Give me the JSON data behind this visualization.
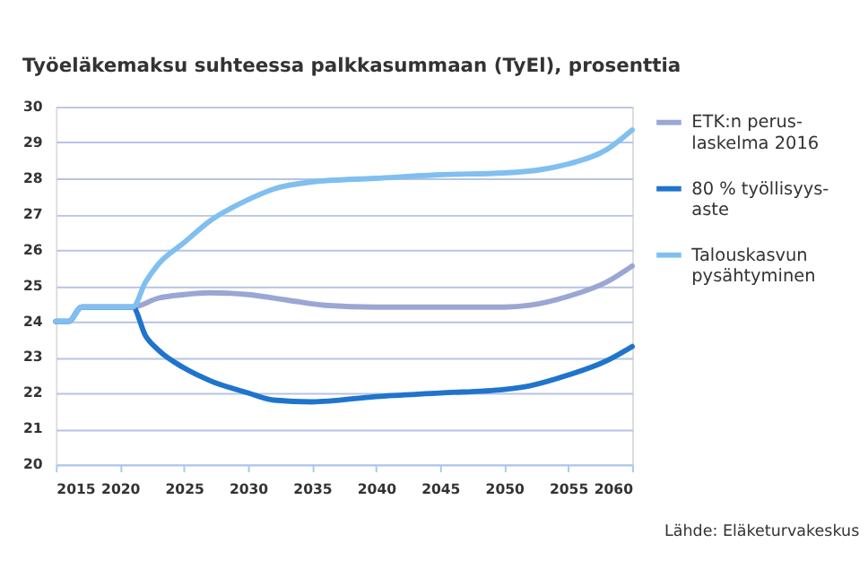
{
  "chart_data": {
    "type": "line",
    "title": "Työeläkemaksu suhteessa palkkasummaan (TyEl), prosenttia",
    "annotations": [
      "Lähde: Eläketurvakeskus"
    ],
    "xlim": [
      2015,
      2060
    ],
    "xticks": [
      2015,
      2020,
      2025,
      2030,
      2035,
      2040,
      2045,
      2050,
      2055,
      2060
    ],
    "ylim": [
      20,
      30
    ],
    "yticks": [
      20,
      21,
      22,
      23,
      24,
      25,
      26,
      27,
      28,
      29,
      30
    ],
    "grid": "y",
    "legend": "right",
    "marker": "none",
    "line_style": "solid",
    "series": [
      {
        "name": "ETK:n perus-\nlaskelma 2016",
        "color": "#9aa6d4",
        "x": [
          2015,
          2016,
          2017,
          2021,
          2023,
          2025,
          2027,
          2030,
          2033,
          2036,
          2040,
          2045,
          2050,
          2052,
          2055,
          2058,
          2060
        ],
        "values": [
          24,
          24,
          24.4,
          24.4,
          24.65,
          24.75,
          24.8,
          24.75,
          24.6,
          24.45,
          24.4,
          24.4,
          24.4,
          24.45,
          24.7,
          25.1,
          25.55
        ]
      },
      {
        "name": "80 % työllisyys-\naste",
        "color": "#1f74cc",
        "x": [
          2015,
          2016,
          2017,
          2021,
          2022,
          2023,
          2025,
          2027,
          2030,
          2032,
          2035,
          2040,
          2045,
          2050,
          2052,
          2055,
          2058,
          2060
        ],
        "values": [
          24,
          24,
          24.4,
          24.4,
          23.6,
          23.2,
          22.7,
          22.35,
          22.0,
          21.8,
          21.75,
          21.9,
          22.0,
          22.1,
          22.2,
          22.5,
          22.9,
          23.3
        ]
      },
      {
        "name": "Talouskasvun\npysähtyminen",
        "color": "#80bff0",
        "x": [
          2015,
          2016,
          2017,
          2021,
          2022,
          2023,
          2025,
          2027,
          2030,
          2032,
          2035,
          2040,
          2045,
          2050,
          2053,
          2055,
          2058,
          2060
        ],
        "values": [
          24,
          24,
          24.4,
          24.4,
          25.1,
          25.6,
          26.2,
          26.8,
          27.4,
          27.7,
          27.9,
          28.0,
          28.1,
          28.15,
          28.25,
          28.4,
          28.8,
          29.35
        ]
      }
    ]
  }
}
